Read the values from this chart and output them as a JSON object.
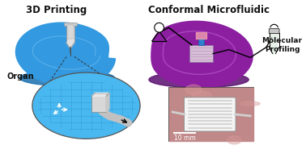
{
  "bg_color": "#ffffff",
  "title_left": "3D Printing",
  "title_right": "Conformal Microfluidic",
  "label_organ": "Organ",
  "label_mol": "Molecular\nProfiling",
  "scale_bar": "10 mm",
  "organ_left_color": "#3399e0",
  "organ_left_shadow": "#1a70b0",
  "organ_right_color": "#8b1fa0",
  "organ_right_shadow": "#5a0f70",
  "organ_right_ring": "#b040c0",
  "zoom_bg": "#4ab8f0",
  "zoom_grid": "#2890d0",
  "zoom_border": "#555555",
  "chip_face": "#d8bcd8",
  "chip_edge": "#9070a0",
  "chip_lines": "#b8a0b8",
  "needle_barrel": "#e0e0e0",
  "needle_edge": "#909090",
  "needle_piston": "#cccccc",
  "needle_tip": "#505050",
  "lamp_color": "#000000",
  "tube_color": "#111111",
  "eppendorf_fill": "#c8d8c8",
  "eppendorf_cap": "#b0b0b0",
  "photo_bg": "#b87878",
  "photo_tissue": "#c89090",
  "photo_device": "#f2f2f2",
  "photo_channels": "#d8d8d8",
  "photo_border": "#333333",
  "channel_body": "#ffffff",
  "axis_arrow": "#ffffff",
  "dashed_color": "#333333",
  "text_color": "#111111",
  "font_title": 8.5,
  "font_label": 7.0,
  "font_scale": 5.5
}
